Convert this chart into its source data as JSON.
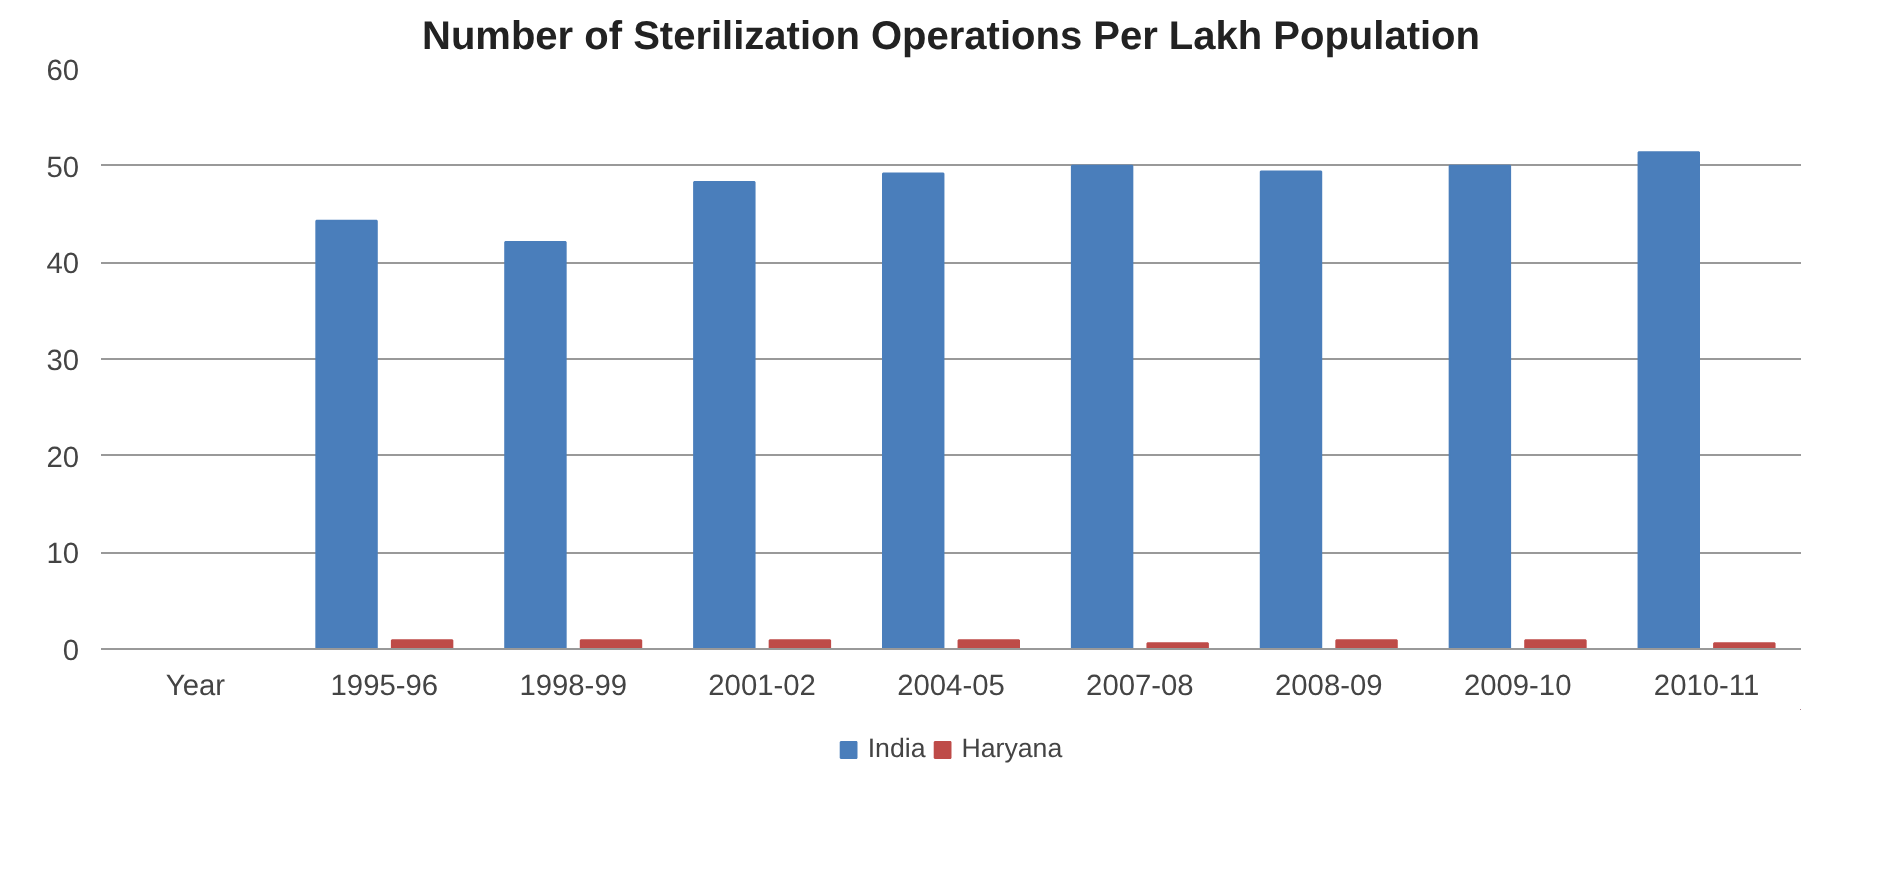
{
  "chart_data": {
    "type": "bar",
    "title": "Number of Sterilization Operations Per Lakh Population",
    "categories": [
      "Year",
      "1995-96",
      "1998-99",
      "2001-02",
      "2004-05",
      "2007-08",
      "2008-09",
      "2009-10",
      "2010-11"
    ],
    "series": [
      {
        "name": "India",
        "color": "#4a7ebb",
        "values": [
          null,
          44.3,
          42.1,
          48.3,
          49.2,
          50.0,
          49.4,
          50.0,
          51.4
        ]
      },
      {
        "name": "Haryana",
        "color": "#be4b48",
        "values": [
          null,
          0.9,
          0.9,
          0.9,
          0.9,
          0.6,
          0.9,
          0.9,
          0.6
        ]
      }
    ],
    "ylim": [
      0,
      60
    ],
    "yticks": [
      0,
      10,
      20,
      30,
      40,
      50,
      60
    ],
    "grid": "y",
    "legend": "bottom"
  }
}
